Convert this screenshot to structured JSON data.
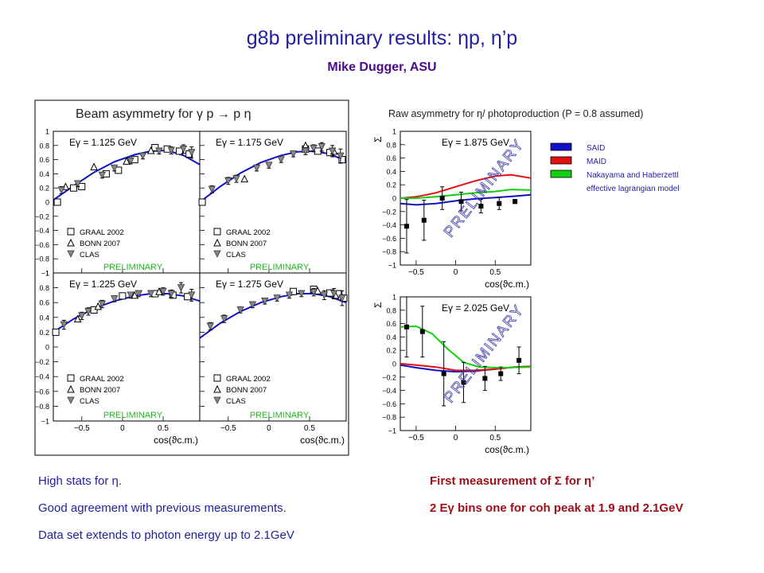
{
  "slide": {
    "title": "g8b preliminary results: ηp, η’p",
    "subtitle": "Mike Dugger, ASU",
    "notes_left": [
      "High stats for η.",
      "Good agreement with previous measurements.",
      "Data set extends to photon energy up to 2.1GeV"
    ],
    "notes_right": [
      "First measurement of Σ for η’",
      "2 Eγ bins one for coh peak at 1.9 and 2.1GeV"
    ]
  },
  "colors": {
    "title": "#1f1fa0",
    "subtitle": "#4b0a8c",
    "said": "#1010c8",
    "maid": "#e01010",
    "nakayama": "#10d010",
    "preliminary": "#28b428"
  },
  "left_figure": {
    "title": "Beam asymmetry for γ p → p η",
    "watermark": "PRELIMINARY",
    "xlabel": "cos(ϑc.m.)",
    "xticks": [
      "−0.5",
      "0",
      "0.5"
    ],
    "yticks": [
      "1",
      "0.8",
      "0.6",
      "0.4",
      "0.2",
      "0",
      "−0.2",
      "−0.4",
      "−0.6",
      "−0.8",
      "−1"
    ],
    "legend": [
      "GRAAL 2002",
      "BONN 2007",
      "CLAS"
    ]
  },
  "right_figure": {
    "title": "Raw asymmetry for η/ photoproduction (P = 0.8 assumed)",
    "watermark": "PRELIMINARY",
    "ylabel": "Σ",
    "xlabel": "cos(ϑc.m.)",
    "xticks": [
      "−0.5",
      "0",
      "0.5"
    ],
    "yticks": [
      "1",
      "0.8",
      "0.6",
      "0.4",
      "0.2",
      "0",
      "−0.2",
      "−0.4",
      "−0.6",
      "−0.8",
      "−1"
    ],
    "legend": [
      "SAID",
      "MAID",
      "Nakayama  and Haberzettl",
      "effective lagrangian model"
    ]
  },
  "chart_data": [
    {
      "type": "scatter",
      "label": "Eγ = 1.125 GeV",
      "xlim": [
        -0.85,
        0.95
      ],
      "ylim": [
        -1,
        1
      ],
      "model": [
        [
          -0.85,
          0.03
        ],
        [
          -0.6,
          0.23
        ],
        [
          -0.35,
          0.42
        ],
        [
          -0.1,
          0.57
        ],
        [
          0.15,
          0.67
        ],
        [
          0.35,
          0.72
        ],
        [
          0.55,
          0.73
        ],
        [
          0.75,
          0.66
        ],
        [
          0.95,
          0.53
        ]
      ],
      "series": [
        {
          "name": "GRAAL 2002",
          "marker": "square",
          "points": [
            [
              -0.8,
              0.0
            ],
            [
              -0.6,
              0.2
            ],
            [
              -0.5,
              0.22
            ],
            [
              -0.2,
              0.4
            ],
            [
              -0.05,
              0.45
            ],
            [
              0.15,
              0.6
            ],
            [
              0.4,
              0.77
            ],
            [
              0.55,
              0.75
            ],
            [
              0.7,
              0.72
            ],
            [
              0.82,
              0.68
            ]
          ]
        },
        {
          "name": "BONN 2007",
          "marker": "triangle",
          "points": [
            [
              -0.7,
              0.22
            ],
            [
              -0.35,
              0.5
            ],
            [
              0.05,
              0.58
            ],
            [
              0.35,
              0.73
            ]
          ]
        },
        {
          "name": "CLAS",
          "marker": "triangle-down",
          "points": [
            [
              -0.75,
              0.17
            ],
            [
              -0.55,
              0.26
            ],
            [
              -0.25,
              0.38
            ],
            [
              -0.1,
              0.48
            ],
            [
              0.1,
              0.58
            ],
            [
              0.25,
              0.65
            ],
            [
              0.45,
              0.72
            ],
            [
              0.6,
              0.73
            ],
            [
              0.75,
              0.75
            ],
            [
              0.85,
              0.7
            ]
          ],
          "errors": [
            0.05,
            0.04,
            0.04,
            0.04,
            0.04,
            0.04,
            0.04,
            0.05,
            0.06,
            0.08
          ]
        }
      ]
    },
    {
      "type": "scatter",
      "label": "Eγ = 1.175 GeV",
      "xlim": [
        -0.85,
        0.95
      ],
      "ylim": [
        -1,
        1
      ],
      "model": [
        [
          -0.85,
          0.0
        ],
        [
          -0.6,
          0.22
        ],
        [
          -0.35,
          0.41
        ],
        [
          -0.1,
          0.56
        ],
        [
          0.15,
          0.66
        ],
        [
          0.35,
          0.71
        ],
        [
          0.55,
          0.72
        ],
        [
          0.75,
          0.68
        ],
        [
          0.95,
          0.58
        ]
      ],
      "series": [
        {
          "name": "GRAAL 2002",
          "marker": "square",
          "points": [
            [
              -0.82,
              0.0
            ],
            [
              0.45,
              0.75
            ],
            [
              0.6,
              0.72
            ],
            [
              0.75,
              0.7
            ],
            [
              0.9,
              0.6
            ]
          ]
        },
        {
          "name": "BONN 2007",
          "marker": "triangle",
          "points": [
            [
              -0.3,
              0.33
            ],
            [
              0.45,
              0.8
            ],
            [
              0.8,
              0.72
            ]
          ]
        },
        {
          "name": "CLAS",
          "marker": "triangle-down",
          "points": [
            [
              -0.7,
              0.18
            ],
            [
              -0.5,
              0.3
            ],
            [
              -0.4,
              0.33
            ],
            [
              -0.15,
              0.48
            ],
            [
              0.0,
              0.52
            ],
            [
              0.15,
              0.6
            ],
            [
              0.3,
              0.68
            ],
            [
              0.45,
              0.72
            ],
            [
              0.55,
              0.76
            ],
            [
              0.65,
              0.78
            ],
            [
              0.78,
              0.72
            ],
            [
              0.88,
              0.65
            ]
          ],
          "errors": [
            0.05,
            0.05,
            0.05,
            0.04,
            0.04,
            0.04,
            0.04,
            0.05,
            0.05,
            0.06,
            0.08,
            0.1
          ]
        }
      ]
    },
    {
      "type": "scatter",
      "label": "Eγ = 1.225 GeV",
      "xlim": [
        -0.85,
        0.95
      ],
      "ylim": [
        -1,
        1
      ],
      "model": [
        [
          -0.85,
          0.2
        ],
        [
          -0.6,
          0.38
        ],
        [
          -0.35,
          0.52
        ],
        [
          -0.1,
          0.62
        ],
        [
          0.15,
          0.69
        ],
        [
          0.35,
          0.72
        ],
        [
          0.55,
          0.72
        ],
        [
          0.75,
          0.69
        ],
        [
          0.95,
          0.62
        ]
      ],
      "series": [
        {
          "name": "GRAAL 2002",
          "marker": "square",
          "points": [
            [
              -0.82,
              0.2
            ],
            [
              -0.35,
              0.5
            ],
            [
              0.0,
              0.69
            ],
            [
              0.4,
              0.72
            ],
            [
              0.62,
              0.7
            ],
            [
              0.8,
              0.68
            ]
          ]
        },
        {
          "name": "BONN 2007",
          "marker": "triangle",
          "points": [
            [
              -0.55,
              0.38
            ],
            [
              -0.3,
              0.55
            ],
            [
              0.15,
              0.7
            ],
            [
              0.45,
              0.75
            ]
          ]
        },
        {
          "name": "CLAS",
          "marker": "triangle-down",
          "points": [
            [
              -0.72,
              0.3
            ],
            [
              -0.5,
              0.42
            ],
            [
              -0.42,
              0.48
            ],
            [
              -0.25,
              0.58
            ],
            [
              -0.1,
              0.65
            ],
            [
              0.1,
              0.7
            ],
            [
              0.2,
              0.72
            ],
            [
              0.35,
              0.72
            ],
            [
              0.5,
              0.75
            ],
            [
              0.6,
              0.72
            ],
            [
              0.72,
              0.8
            ],
            [
              0.85,
              0.7
            ]
          ],
          "errors": [
            0.06,
            0.05,
            0.05,
            0.05,
            0.04,
            0.04,
            0.04,
            0.04,
            0.05,
            0.05,
            0.07,
            0.08
          ]
        }
      ]
    },
    {
      "type": "scatter",
      "label": "Eγ = 1.275 GeV",
      "xlim": [
        -0.85,
        0.95
      ],
      "ylim": [
        -1,
        1
      ],
      "model": [
        [
          -0.85,
          0.12
        ],
        [
          -0.6,
          0.32
        ],
        [
          -0.35,
          0.48
        ],
        [
          -0.1,
          0.6
        ],
        [
          0.15,
          0.68
        ],
        [
          0.35,
          0.72
        ],
        [
          0.55,
          0.72
        ],
        [
          0.75,
          0.68
        ],
        [
          0.95,
          0.6
        ]
      ],
      "series": [
        {
          "name": "GRAAL 2002",
          "marker": "square",
          "points": [
            [
              0.3,
              0.75
            ],
            [
              0.55,
              0.78
            ],
            [
              0.75,
              0.73
            ],
            [
              0.85,
              0.72
            ],
            [
              0.92,
              0.66
            ]
          ]
        },
        {
          "name": "BONN 2007",
          "marker": "triangle",
          "points": [
            [
              0.6,
              0.76
            ],
            [
              0.82,
              0.7
            ]
          ]
        },
        {
          "name": "CLAS",
          "marker": "triangle-down",
          "points": [
            [
              -0.72,
              0.28
            ],
            [
              -0.55,
              0.38
            ],
            [
              -0.35,
              0.5
            ],
            [
              -0.2,
              0.57
            ],
            [
              -0.05,
              0.62
            ],
            [
              0.1,
              0.66
            ],
            [
              0.25,
              0.7
            ],
            [
              0.4,
              0.72
            ],
            [
              0.55,
              0.74
            ],
            [
              0.68,
              0.7
            ],
            [
              0.8,
              0.72
            ],
            [
              0.9,
              0.66
            ]
          ],
          "errors": [
            0.05,
            0.05,
            0.04,
            0.04,
            0.04,
            0.04,
            0.04,
            0.04,
            0.05,
            0.06,
            0.07,
            0.1
          ]
        }
      ]
    },
    {
      "type": "scatter",
      "label": "Eγ = 1.875 GeV",
      "xlim": [
        -0.7,
        0.95
      ],
      "ylim": [
        -1,
        1
      ],
      "ylabel": "Σ",
      "models": [
        {
          "name": "SAID",
          "points": [
            [
              -0.7,
              -0.08
            ],
            [
              -0.5,
              -0.1
            ],
            [
              -0.25,
              -0.08
            ],
            [
              0.0,
              -0.04
            ],
            [
              0.25,
              -0.01
            ],
            [
              0.5,
              0.01
            ],
            [
              0.75,
              0.03
            ],
            [
              0.95,
              0.05
            ]
          ]
        },
        {
          "name": "MAID",
          "points": [
            [
              -0.7,
              0.0
            ],
            [
              -0.5,
              0.02
            ],
            [
              -0.25,
              0.08
            ],
            [
              0.0,
              0.17
            ],
            [
              0.25,
              0.26
            ],
            [
              0.5,
              0.33
            ],
            [
              0.7,
              0.35
            ],
            [
              0.95,
              0.3
            ]
          ]
        },
        {
          "name": "Nakayama and Haberzettl",
          "points": [
            [
              -0.7,
              0.0
            ],
            [
              -0.5,
              0.0
            ],
            [
              -0.25,
              0.02
            ],
            [
              0.0,
              0.05
            ],
            [
              0.25,
              0.08
            ],
            [
              0.5,
              0.1
            ],
            [
              0.7,
              0.13
            ],
            [
              0.95,
              0.12
            ]
          ]
        }
      ],
      "series": [
        {
          "name": "data",
          "marker": "square-filled",
          "points": [
            [
              -0.62,
              -0.42
            ],
            [
              -0.4,
              -0.33
            ],
            [
              -0.17,
              0.0
            ],
            [
              0.07,
              -0.05
            ],
            [
              0.32,
              -0.12
            ],
            [
              0.55,
              -0.08
            ],
            [
              0.75,
              -0.05
            ]
          ],
          "errors": [
            0.4,
            0.3,
            0.17,
            0.14,
            0.1,
            0.09,
            0.03
          ]
        }
      ]
    },
    {
      "type": "scatter",
      "label": "Eγ = 2.025 GeV",
      "xlim": [
        -0.7,
        0.95
      ],
      "ylim": [
        -1,
        1
      ],
      "ylabel": "Σ",
      "models": [
        {
          "name": "SAID",
          "points": [
            [
              -0.7,
              -0.02
            ],
            [
              -0.5,
              -0.06
            ],
            [
              -0.25,
              -0.1
            ],
            [
              0.0,
              -0.12
            ],
            [
              0.25,
              -0.11
            ],
            [
              0.5,
              -0.08
            ],
            [
              0.75,
              -0.05
            ],
            [
              0.95,
              -0.04
            ]
          ]
        },
        {
          "name": "MAID",
          "points": [
            [
              -0.7,
              0.0
            ],
            [
              -0.5,
              -0.02
            ],
            [
              -0.25,
              -0.05
            ],
            [
              0.0,
              -0.1
            ],
            [
              0.25,
              -0.1
            ],
            [
              0.5,
              -0.08
            ],
            [
              0.75,
              -0.05
            ],
            [
              0.95,
              -0.04
            ]
          ]
        },
        {
          "name": "Nakayama and Haberzettl",
          "points": [
            [
              -0.7,
              0.55
            ],
            [
              -0.5,
              0.56
            ],
            [
              -0.3,
              0.45
            ],
            [
              -0.1,
              0.22
            ],
            [
              0.1,
              0.02
            ],
            [
              0.3,
              -0.05
            ],
            [
              0.55,
              -0.06
            ],
            [
              0.95,
              -0.05
            ]
          ]
        }
      ],
      "series": [
        {
          "name": "data",
          "marker": "square-filled",
          "points": [
            [
              -0.62,
              0.55
            ],
            [
              -0.42,
              0.48
            ],
            [
              -0.15,
              -0.15
            ],
            [
              0.1,
              -0.28
            ],
            [
              0.37,
              -0.22
            ],
            [
              0.57,
              -0.15
            ],
            [
              0.8,
              0.05
            ]
          ],
          "errors": [
            0.45,
            0.38,
            0.48,
            0.3,
            0.18,
            0.1,
            0.2
          ]
        }
      ]
    }
  ]
}
